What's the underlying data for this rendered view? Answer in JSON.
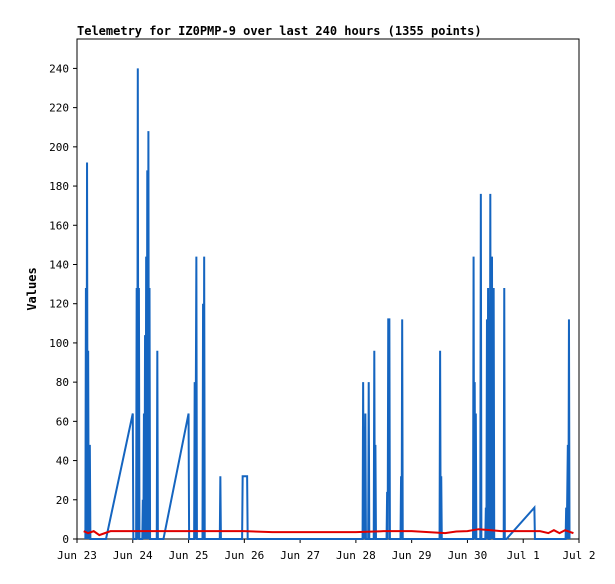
{
  "chart_data": {
    "type": "line",
    "title": "Telemetry for IZ0PMP-9 over last 240 hours (1355 points)",
    "xlabel": "",
    "ylabel": "Values",
    "xlim": [
      "Jun 23",
      "Jul 2"
    ],
    "ylim": [
      0,
      255
    ],
    "grid": false,
    "legend": "none",
    "x_ticks": [
      {
        "label": "Jun 23",
        "day": 0
      },
      {
        "label": "Jun 24",
        "day": 1
      },
      {
        "label": "Jun 25",
        "day": 2
      },
      {
        "label": "Jun 26",
        "day": 3
      },
      {
        "label": "Jun 27",
        "day": 4
      },
      {
        "label": "Jun 28",
        "day": 5
      },
      {
        "label": "Jun 29",
        "day": 6
      },
      {
        "label": "Jun 30",
        "day": 7
      },
      {
        "label": "Jul 1",
        "day": 8
      },
      {
        "label": "Jul 2",
        "day": 9
      }
    ],
    "y_ticks": [
      0,
      20,
      40,
      60,
      80,
      100,
      120,
      140,
      160,
      180,
      200,
      220,
      240
    ],
    "series": [
      {
        "color": "#1565C0",
        "points": [
          [
            0.15,
            0
          ],
          [
            0.16,
            128
          ],
          [
            0.17,
            0
          ],
          [
            0.18,
            192
          ],
          [
            0.19,
            0
          ],
          [
            0.2,
            96
          ],
          [
            0.21,
            0
          ],
          [
            0.23,
            48
          ],
          [
            0.24,
            0
          ],
          [
            0.52,
            0
          ],
          [
            1.0,
            64
          ],
          [
            1.01,
            0
          ],
          [
            1.06,
            0
          ],
          [
            1.07,
            128
          ],
          [
            1.08,
            0
          ],
          [
            1.09,
            240
          ],
          [
            1.1,
            0
          ],
          [
            1.11,
            128
          ],
          [
            1.12,
            0
          ],
          [
            1.17,
            0
          ],
          [
            1.18,
            20
          ],
          [
            1.19,
            0
          ],
          [
            1.2,
            64
          ],
          [
            1.21,
            0
          ],
          [
            1.22,
            104
          ],
          [
            1.23,
            0
          ],
          [
            1.24,
            144
          ],
          [
            1.25,
            0
          ],
          [
            1.26,
            188
          ],
          [
            1.27,
            0
          ],
          [
            1.28,
            208
          ],
          [
            1.29,
            0
          ],
          [
            1.3,
            128
          ],
          [
            1.31,
            0
          ],
          [
            1.43,
            0
          ],
          [
            1.44,
            96
          ],
          [
            1.45,
            0
          ],
          [
            1.55,
            0
          ],
          [
            2.0,
            64
          ],
          [
            2.01,
            0
          ],
          [
            2.1,
            0
          ],
          [
            2.11,
            80
          ],
          [
            2.12,
            0
          ],
          [
            2.14,
            144
          ],
          [
            2.15,
            0
          ],
          [
            2.25,
            0
          ],
          [
            2.26,
            120
          ],
          [
            2.27,
            0
          ],
          [
            2.28,
            144
          ],
          [
            2.29,
            0
          ],
          [
            2.56,
            0
          ],
          [
            2.57,
            32
          ],
          [
            2.58,
            0
          ],
          [
            2.96,
            0
          ],
          [
            2.97,
            32
          ],
          [
            3.05,
            32
          ],
          [
            3.06,
            0
          ],
          [
            5.12,
            0
          ],
          [
            5.13,
            80
          ],
          [
            5.14,
            0
          ],
          [
            5.15,
            40
          ],
          [
            5.16,
            0
          ],
          [
            5.17,
            64
          ],
          [
            5.18,
            0
          ],
          [
            5.22,
            0
          ],
          [
            5.23,
            80
          ],
          [
            5.24,
            0
          ],
          [
            5.32,
            0
          ],
          [
            5.33,
            96
          ],
          [
            5.34,
            0
          ],
          [
            5.35,
            48
          ],
          [
            5.36,
            0
          ],
          [
            5.55,
            0
          ],
          [
            5.56,
            24
          ],
          [
            5.57,
            0
          ],
          [
            5.58,
            112
          ],
          [
            5.6,
            112
          ],
          [
            5.61,
            0
          ],
          [
            5.8,
            0
          ],
          [
            5.81,
            32
          ],
          [
            5.82,
            0
          ],
          [
            5.83,
            112
          ],
          [
            5.84,
            0
          ],
          [
            6.5,
            0
          ],
          [
            6.51,
            96
          ],
          [
            6.52,
            0
          ],
          [
            6.53,
            32
          ],
          [
            6.54,
            0
          ],
          [
            7.1,
            0
          ],
          [
            7.11,
            144
          ],
          [
            7.12,
            0
          ],
          [
            7.13,
            80
          ],
          [
            7.14,
            0
          ],
          [
            7.15,
            64
          ],
          [
            7.16,
            0
          ],
          [
            7.23,
            0
          ],
          [
            7.24,
            176
          ],
          [
            7.25,
            0
          ],
          [
            7.32,
            0
          ],
          [
            7.33,
            16
          ],
          [
            7.34,
            0
          ],
          [
            7.35,
            112
          ],
          [
            7.36,
            0
          ],
          [
            7.37,
            128
          ],
          [
            7.38,
            0
          ],
          [
            7.4,
            0
          ],
          [
            7.41,
            176
          ],
          [
            7.42,
            0
          ],
          [
            7.44,
            144
          ],
          [
            7.45,
            0
          ],
          [
            7.47,
            128
          ],
          [
            7.48,
            0
          ],
          [
            7.65,
            0
          ],
          [
            7.66,
            128
          ],
          [
            7.67,
            0
          ],
          [
            7.7,
            0
          ],
          [
            8.2,
            16
          ],
          [
            8.21,
            0
          ],
          [
            8.76,
            0
          ],
          [
            8.77,
            16
          ],
          [
            8.78,
            0
          ],
          [
            8.8,
            48
          ],
          [
            8.81,
            0
          ],
          [
            8.82,
            112
          ],
          [
            8.83,
            0
          ]
        ]
      },
      {
        "color": "#E00000",
        "points": [
          [
            0.12,
            4
          ],
          [
            0.2,
            3
          ],
          [
            0.3,
            4
          ],
          [
            0.4,
            2
          ],
          [
            0.5,
            3
          ],
          [
            0.6,
            4
          ],
          [
            0.8,
            4
          ],
          [
            1.0,
            4
          ],
          [
            1.5,
            4
          ],
          [
            2.0,
            4
          ],
          [
            2.5,
            4
          ],
          [
            3.0,
            4
          ],
          [
            3.5,
            3.5
          ],
          [
            4.0,
            3.5
          ],
          [
            4.5,
            3.5
          ],
          [
            5.0,
            3.5
          ],
          [
            5.5,
            4
          ],
          [
            6.0,
            4
          ],
          [
            6.3,
            3.5
          ],
          [
            6.6,
            3
          ],
          [
            6.8,
            3.8
          ],
          [
            7.0,
            4
          ],
          [
            7.2,
            5
          ],
          [
            7.4,
            4.5
          ],
          [
            7.6,
            4
          ],
          [
            8.0,
            4
          ],
          [
            8.3,
            4
          ],
          [
            8.45,
            3
          ],
          [
            8.55,
            4.5
          ],
          [
            8.65,
            3
          ],
          [
            8.75,
            4.5
          ],
          [
            8.85,
            3.5
          ],
          [
            8.9,
            3
          ]
        ]
      }
    ]
  }
}
